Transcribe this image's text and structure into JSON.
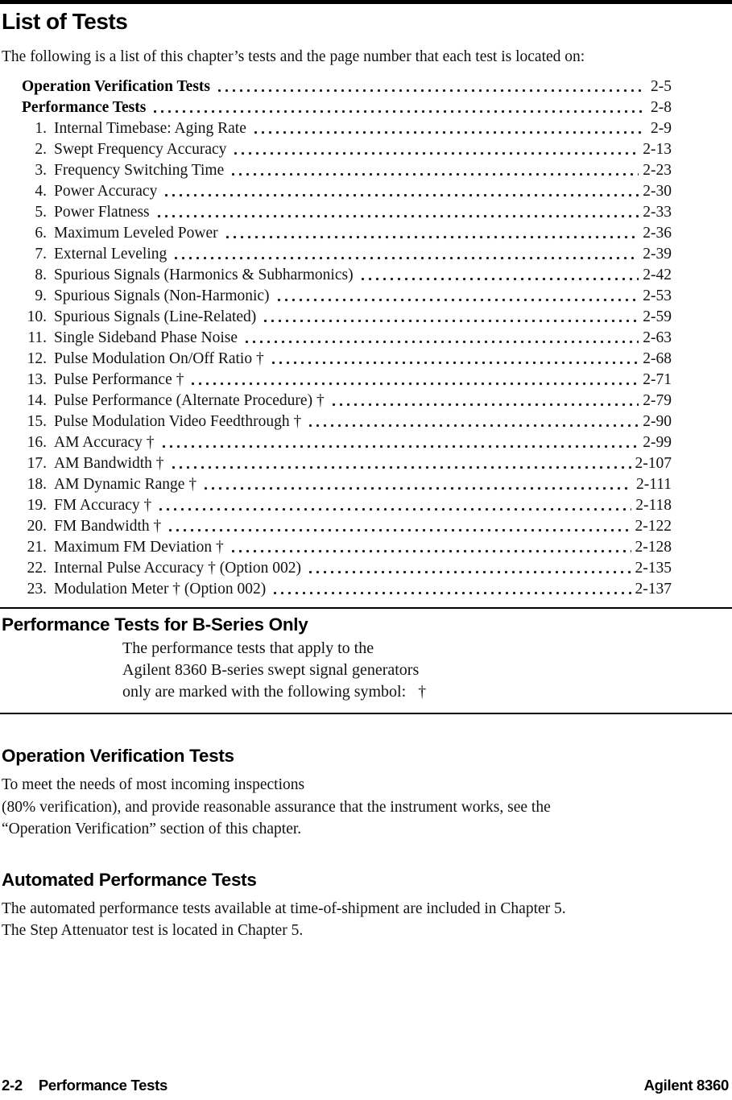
{
  "header": {
    "title": "List of Tests"
  },
  "intro": "The following is a list of this chapter’s tests and the page number that each test is located on:",
  "toc": {
    "entries": [
      {
        "num": "",
        "label": "Operation Verification Tests",
        "page": "2-5",
        "bold": true
      },
      {
        "num": "",
        "label": "Performance Tests",
        "page": "2-8",
        "bold": true
      },
      {
        "num": "1.",
        "label": "Internal Timebase: Aging Rate",
        "page": "2-9"
      },
      {
        "num": "2.",
        "label": "Swept Frequency Accuracy",
        "page": "2-13"
      },
      {
        "num": "3.",
        "label": "Frequency Switching Time",
        "page": "2-23"
      },
      {
        "num": "4.",
        "label": "Power Accuracy",
        "page": "2-30"
      },
      {
        "num": "5.",
        "label": "Power Flatness",
        "page": "2-33"
      },
      {
        "num": "6.",
        "label": "Maximum Leveled Power",
        "page": "2-36"
      },
      {
        "num": "7.",
        "label": "External Leveling",
        "page": "2-39"
      },
      {
        "num": "8.",
        "label": "Spurious Signals (Harmonics & Subharmonics)",
        "page": "2-42"
      },
      {
        "num": "9.",
        "label": "Spurious Signals (Non-Harmonic)",
        "page": "2-53"
      },
      {
        "num": "10.",
        "label": "Spurious Signals (Line-Related)",
        "page": "2-59"
      },
      {
        "num": "11.",
        "label": "Single Sideband Phase Noise",
        "page": "2-63"
      },
      {
        "num": "12.",
        "label": "Pulse Modulation On/Off Ratio †",
        "page": "2-68"
      },
      {
        "num": "13.",
        "label": "Pulse Performance †",
        "page": "2-71"
      },
      {
        "num": "14.",
        "label": "Pulse Performance (Alternate Procedure) †",
        "page": "2-79"
      },
      {
        "num": "15.",
        "label": "Pulse Modulation Video Feedthrough †",
        "page": "2-90"
      },
      {
        "num": "16.",
        "label": "AM Accuracy †",
        "page": "2-99"
      },
      {
        "num": "17.",
        "label": "AM Bandwidth †",
        "page": "2-107"
      },
      {
        "num": "18.",
        "label": "AM Dynamic Range †",
        "page": "2-111"
      },
      {
        "num": "19.",
        "label": "FM Accuracy †",
        "page": "2-118"
      },
      {
        "num": "20.",
        "label": "FM Bandwidth †",
        "page": "2-122"
      },
      {
        "num": "21.",
        "label": "Maximum FM Deviation †",
        "page": "2-128"
      },
      {
        "num": "22.",
        "label": "Internal Pulse Accuracy † (Option 002)",
        "page": "2-135"
      },
      {
        "num": "23.",
        "label": "Modulation Meter † (Option 002)",
        "page": "2-137"
      }
    ]
  },
  "bseries": {
    "heading": "Performance Tests for B-Series Only",
    "lines": [
      "The performance tests that apply to the",
      "Agilent 8360 B-series swept signal generators",
      "only are marked with the following symbol:   †"
    ]
  },
  "opver": {
    "heading": "Operation Verification Tests",
    "lines": [
      "To meet the needs of most incoming inspections",
      "(80% verification), and provide reasonable assurance that the instrument works, see the",
      "“Operation Verification” section of this chapter."
    ]
  },
  "auto": {
    "heading": "Automated Performance Tests",
    "lines": [
      "The automated performance tests available at time-of-shipment are included in Chapter 5.",
      "The Step Attenuator test is located in Chapter 5."
    ]
  },
  "footer": {
    "page_number": "2-2",
    "section": "Performance Tests",
    "product": "Agilent 8360"
  },
  "colors": {
    "ink": "#000000",
    "paper": "#ffffff"
  }
}
